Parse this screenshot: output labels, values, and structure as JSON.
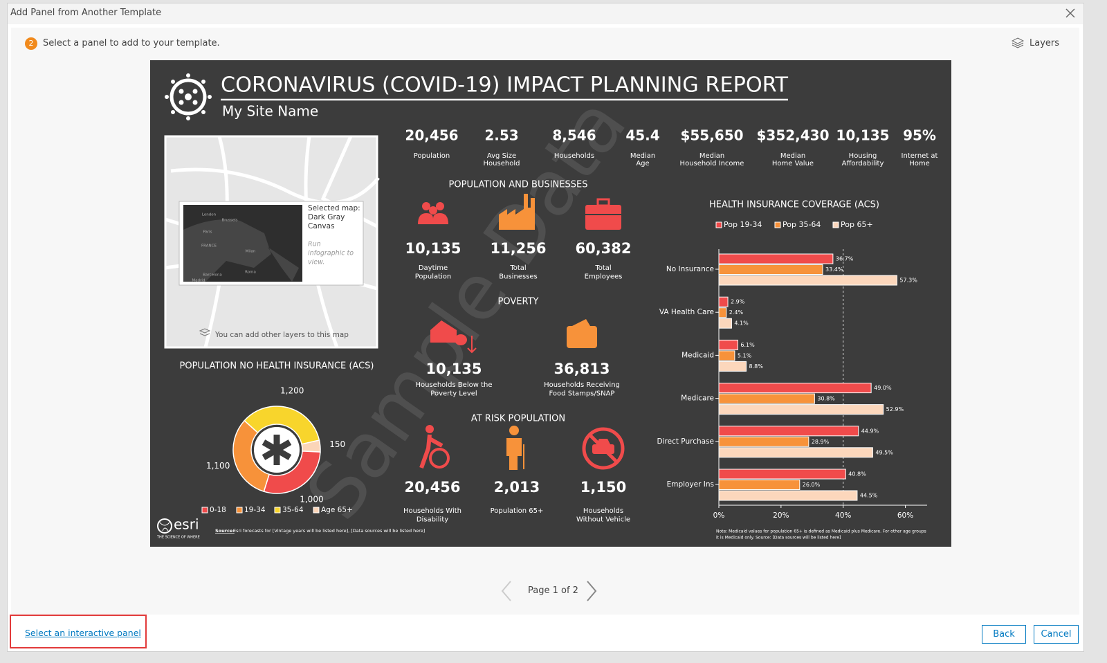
{
  "dialog": {
    "title": "Add Panel from Another Template",
    "step_number": "2",
    "step_text": "Select a panel to add to your template.",
    "layers_button": "Layers",
    "pager": "Page 1 of 2",
    "link": "Select an interactive panel",
    "back": "Back",
    "cancel": "Cancel"
  },
  "infographic": {
    "title": "CORONAVIRUS (COVID-19) IMPACT PLANNING REPORT",
    "subtitle": "My Site Name",
    "watermark": "Sample Data",
    "map": {
      "selected_label": "Selected map:",
      "map_name": [
        "Dark Gray",
        "Canvas"
      ],
      "run_hint": [
        "Run",
        "infographic to",
        "view."
      ],
      "layers_hint": "You can add other layers to this map",
      "place_labels": [
        "London",
        "Brussels",
        "Paris",
        "FRANCE",
        "Milan",
        "Madrid",
        "Barcelona",
        "Roma"
      ]
    },
    "stats": [
      {
        "value": "20,456",
        "label": [
          "Population"
        ]
      },
      {
        "value": "2.53",
        "label": [
          "Avg Size",
          "Household"
        ]
      },
      {
        "value": "8,546",
        "label": [
          "Households"
        ]
      },
      {
        "value": "45.4",
        "label": [
          "Median",
          "Age"
        ]
      },
      {
        "value": "$55,650",
        "label": [
          "Median",
          "Household Income"
        ]
      },
      {
        "value": "$352,430",
        "label": [
          "Median",
          "Home Value"
        ]
      },
      {
        "value": "10,135",
        "label": [
          "Housing",
          "Affordability"
        ]
      },
      {
        "value": "95%",
        "label": [
          "Internet at",
          "Home"
        ]
      }
    ],
    "sections": [
      {
        "title": "POPULATION AND BUSINESSES",
        "items": [
          {
            "value": "10,135",
            "label": [
              "Daytime",
              "Population"
            ]
          },
          {
            "value": "11,256",
            "label": [
              "Total",
              "Businesses"
            ]
          },
          {
            "value": "60,382",
            "label": [
              "Total",
              "Employees"
            ]
          }
        ]
      },
      {
        "title": "POVERTY",
        "items": [
          {
            "value": "10,135",
            "label": [
              "Households Below the",
              "Poverty Level"
            ]
          },
          {
            "value": "36,813",
            "label": [
              "Households Receiving",
              "Food Stamps/SNAP"
            ]
          }
        ]
      },
      {
        "title": "AT RISK POPULATION",
        "items": [
          {
            "value": "20,456",
            "label": [
              "Households With",
              "Disability"
            ]
          },
          {
            "value": "2,013",
            "label": [
              "Population 65+"
            ]
          },
          {
            "value": "1,150",
            "label": [
              "Households",
              "Without Vehicle"
            ]
          }
        ]
      }
    ],
    "footer": {
      "logo": "esri",
      "tagline": "THE SCIENCE OF WHERE",
      "source_label": "Source:",
      "source_text": "Esri forecasts for [Vintage years will be listed here], [Data sources will be listed here]"
    }
  },
  "donut_chart": {
    "type": "pie",
    "title": "POPULATION NO HEALTH INSURANCE (ACS)",
    "categories": [
      "0-18",
      "19-34",
      "35-64",
      "Age 65+"
    ],
    "values": [
      1000,
      1100,
      1200,
      150
    ],
    "value_labels": [
      "1,000",
      "1,100",
      "1,200",
      "150"
    ],
    "colors": [
      "#f04b4b",
      "#f7923a",
      "#f8d52c",
      "#fbd5b8"
    ]
  },
  "bar_chart": {
    "type": "bar",
    "orientation": "horizontal",
    "title": "HEALTH INSURANCE COVERAGE (ACS)",
    "categories": [
      "No Insurance",
      "VA Health Care",
      "Medicaid",
      "Medicare",
      "Direct Purchase",
      "Employer Ins"
    ],
    "series": [
      {
        "name": "Pop 19-34",
        "color": "#f04b4b",
        "values": [
          36.7,
          2.9,
          6.1,
          49.0,
          44.9,
          40.8
        ],
        "value_labels": [
          "36.7%",
          "2.9%",
          "6.1%",
          "49.0%",
          "44.9%",
          "40.8%"
        ]
      },
      {
        "name": "Pop 35-64",
        "color": "#f7923a",
        "values": [
          33.4,
          2.4,
          5.1,
          30.8,
          28.9,
          26.0
        ],
        "value_labels": [
          "33.4%",
          "2.4%",
          "5.1%",
          "30.8%",
          "28.9%",
          "26.0%"
        ]
      },
      {
        "name": "Pop 65+",
        "color": "#fcd7bc",
        "values": [
          57.3,
          4.1,
          8.8,
          52.9,
          49.5,
          44.5
        ],
        "value_labels": [
          "57.3%",
          "4.1%",
          "8.8%",
          "52.9%",
          "49.5%",
          "44.5%"
        ]
      }
    ],
    "xlim": [
      0,
      67
    ],
    "xticks": [
      {
        "value": 0,
        "label": "0%"
      },
      {
        "value": 20,
        "label": "20%"
      },
      {
        "value": 40,
        "label": "40%"
      },
      {
        "value": 60,
        "label": "60%"
      }
    ],
    "reference_line": 40,
    "note": [
      "Note: Medicaid values for population 65+ is defined as Medicaid plus Medicare. For other age groups",
      "it is Medicaid only.  Source: [Data sources will be listed here]"
    ]
  }
}
